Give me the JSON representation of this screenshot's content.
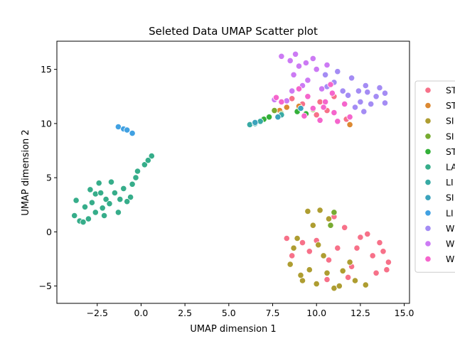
{
  "chart_data": {
    "type": "scatter",
    "title": "Seleted Data  UMAP Scatter plot",
    "xlabel": "UMAP dimension 1",
    "ylabel": "UMAP dimension 2",
    "xlim": [
      -4.8,
      15.3
    ],
    "ylim": [
      -6.6,
      17.6
    ],
    "xticks": [
      -2.5,
      0.0,
      2.5,
      5.0,
      7.5,
      10.0,
      12.5,
      15.0
    ],
    "xtick_labels": [
      "−2.5",
      "0.0",
      "2.5",
      "5.0",
      "7.5",
      "10.0",
      "12.5",
      "15.0"
    ],
    "yticks": [
      -5,
      0,
      5,
      10,
      15
    ],
    "ytick_labels": [
      "−5",
      "0",
      "5",
      "10",
      "15"
    ],
    "grid": false,
    "legend_position": "right, partially clipped",
    "series": [
      {
        "name": "ST",
        "color": "#f77189",
        "points": [
          [
            10.2,
            12.0
          ],
          [
            10.6,
            11.2
          ],
          [
            11.0,
            12.5
          ],
          [
            9.2,
            11.8
          ],
          [
            8.6,
            12.3
          ],
          [
            11.7,
            10.4
          ],
          [
            10.0,
            10.8
          ],
          [
            12.5,
            -0.5
          ],
          [
            13.2,
            -2.2
          ],
          [
            11.2,
            -1.5
          ],
          [
            10.0,
            -0.8
          ],
          [
            14.0,
            -3.5
          ],
          [
            12.0,
            -3.2
          ],
          [
            9.2,
            -1.0
          ],
          [
            13.6,
            -1.0
          ],
          [
            10.7,
            -2.6
          ],
          [
            11.8,
            -4.2
          ],
          [
            12.9,
            -0.2
          ],
          [
            8.3,
            -0.6
          ],
          [
            14.1,
            -2.8
          ],
          [
            11.0,
            1.4
          ],
          [
            9.6,
            -1.8
          ],
          [
            12.3,
            -1.5
          ],
          [
            10.6,
            -4.4
          ],
          [
            13.4,
            -3.8
          ],
          [
            8.6,
            -2.2
          ],
          [
            11.6,
            0.4
          ],
          [
            13.8,
            -1.8
          ]
        ]
      },
      {
        "name": "ST",
        "color": "#dc8932",
        "points": [
          [
            8.3,
            11.5
          ],
          [
            7.9,
            11.2
          ],
          [
            11.9,
            9.9
          ],
          [
            9.0,
            11.6
          ]
        ]
      },
      {
        "name": "SI",
        "color": "#ae9d31",
        "points": [
          [
            8.5,
            -3.0
          ],
          [
            9.2,
            -4.5
          ],
          [
            10.0,
            -4.8
          ],
          [
            11.0,
            -5.2
          ],
          [
            9.6,
            -3.5
          ],
          [
            10.6,
            -3.8
          ],
          [
            8.7,
            -1.5
          ],
          [
            9.5,
            1.9
          ],
          [
            10.2,
            2.0
          ],
          [
            11.3,
            -5.0
          ],
          [
            12.2,
            -4.5
          ],
          [
            9.1,
            -4.0
          ],
          [
            10.4,
            -2.2
          ],
          [
            11.9,
            -2.8
          ],
          [
            10.1,
            -1.2
          ],
          [
            8.9,
            -0.6
          ],
          [
            12.8,
            -4.9
          ],
          [
            9.8,
            0.6
          ],
          [
            11.5,
            -3.6
          ],
          [
            10.7,
            1.2
          ]
        ]
      },
      {
        "name": "SI",
        "color": "#77ab31",
        "points": [
          [
            10.8,
            0.6
          ],
          [
            11.0,
            1.8
          ],
          [
            7.6,
            11.2
          ],
          [
            8.0,
            10.9
          ],
          [
            9.8,
            11.3
          ]
        ]
      },
      {
        "name": "ST",
        "color": "#33b039",
        "points": [
          [
            7.0,
            10.4
          ],
          [
            7.3,
            10.6
          ],
          [
            8.9,
            11.1
          ],
          [
            9.4,
            10.9
          ]
        ]
      },
      {
        "name": "LA",
        "color": "#36ad8a",
        "points": [
          [
            -3.5,
            1.0
          ],
          [
            -3.0,
            1.2
          ],
          [
            -2.6,
            1.8
          ],
          [
            -2.2,
            2.2
          ],
          [
            -2.0,
            3.0
          ],
          [
            -2.6,
            3.5
          ],
          [
            -3.2,
            2.3
          ],
          [
            -1.8,
            2.6
          ],
          [
            -1.5,
            3.6
          ],
          [
            -1.0,
            4.0
          ],
          [
            -0.6,
            3.2
          ],
          [
            -0.5,
            4.4
          ],
          [
            -0.8,
            2.8
          ],
          [
            -0.2,
            5.6
          ],
          [
            0.2,
            6.2
          ],
          [
            0.6,
            7.0
          ],
          [
            -2.4,
            4.5
          ],
          [
            -3.8,
            1.5
          ],
          [
            -2.9,
            3.9
          ],
          [
            -1.7,
            4.6
          ],
          [
            -3.3,
            0.9
          ],
          [
            -2.1,
            1.5
          ],
          [
            -0.3,
            5.0
          ],
          [
            0.4,
            6.6
          ],
          [
            -1.3,
            1.8
          ],
          [
            -3.7,
            2.9
          ],
          [
            -2.8,
            2.7
          ],
          [
            -2.3,
            3.6
          ],
          [
            -1.2,
            3.0
          ]
        ]
      },
      {
        "name": "LI",
        "color": "#38aaa4",
        "points": [
          [
            6.2,
            9.9
          ],
          [
            6.5,
            10.0
          ],
          [
            6.8,
            10.2
          ],
          [
            8.0,
            10.8
          ]
        ]
      },
      {
        "name": "SI",
        "color": "#3ba3bc",
        "points": [
          [
            6.5,
            10.1
          ],
          [
            7.8,
            10.6
          ],
          [
            9.1,
            11.4
          ]
        ]
      },
      {
        "name": "LI",
        "color": "#41a1e2",
        "points": [
          [
            -1.3,
            9.7
          ],
          [
            -1.0,
            9.5
          ],
          [
            -0.8,
            9.4
          ],
          [
            -0.5,
            9.1
          ]
        ]
      },
      {
        "name": "W",
        "color": "#a48cf4",
        "points": [
          [
            12.0,
            14.2
          ],
          [
            12.8,
            13.5
          ],
          [
            13.4,
            12.5
          ],
          [
            13.9,
            12.8
          ],
          [
            12.5,
            12.0
          ],
          [
            11.5,
            13.0
          ],
          [
            10.5,
            14.5
          ],
          [
            11.0,
            13.8
          ],
          [
            12.2,
            11.5
          ],
          [
            13.1,
            11.8
          ],
          [
            11.8,
            12.6
          ],
          [
            12.9,
            12.9
          ],
          [
            13.6,
            13.3
          ],
          [
            11.2,
            14.8
          ],
          [
            12.4,
            13.0
          ],
          [
            13.9,
            11.9
          ],
          [
            10.6,
            13.4
          ],
          [
            12.7,
            11.1
          ]
        ]
      },
      {
        "name": "W",
        "color": "#cc7af4",
        "points": [
          [
            8.0,
            16.2
          ],
          [
            8.5,
            15.8
          ],
          [
            9.0,
            15.3
          ],
          [
            8.7,
            14.5
          ],
          [
            9.5,
            14.0
          ],
          [
            10.0,
            15.0
          ],
          [
            9.8,
            16.0
          ],
          [
            8.3,
            12.1
          ],
          [
            7.6,
            12.2
          ],
          [
            9.2,
            13.5
          ],
          [
            10.3,
            13.2
          ],
          [
            8.8,
            16.4
          ],
          [
            9.4,
            15.6
          ],
          [
            10.6,
            15.4
          ],
          [
            8.6,
            13.0
          ]
        ]
      },
      {
        "name": "W",
        "color": "#f565cc",
        "points": [
          [
            9.5,
            12.5
          ],
          [
            10.5,
            12.0
          ],
          [
            11.0,
            11.0
          ],
          [
            10.2,
            10.3
          ],
          [
            11.6,
            11.8
          ],
          [
            8.0,
            12.0
          ],
          [
            9.0,
            13.2
          ],
          [
            10.8,
            13.6
          ],
          [
            11.2,
            10.2
          ],
          [
            9.8,
            11.4
          ],
          [
            7.7,
            12.4
          ],
          [
            10.9,
            12.8
          ],
          [
            11.9,
            10.6
          ],
          [
            9.3,
            10.7
          ],
          [
            10.4,
            11.5
          ]
        ]
      }
    ]
  }
}
